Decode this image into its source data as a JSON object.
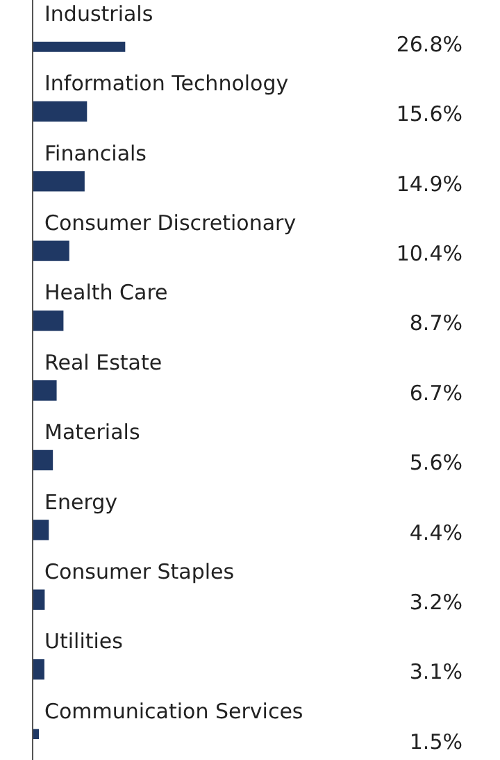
{
  "chart_data": {
    "type": "bar",
    "orientation": "horizontal",
    "categories": [
      "Industrials",
      "Information Technology",
      "Financials",
      "Consumer Discretionary",
      "Health Care",
      "Real Estate",
      "Materials",
      "Energy",
      "Consumer Staples",
      "Utilities",
      "Communication Services"
    ],
    "values": [
      26.8,
      15.6,
      14.9,
      10.4,
      8.7,
      6.7,
      5.6,
      4.4,
      3.2,
      3.1,
      1.5
    ],
    "value_labels": [
      "26.8%",
      "15.6%",
      "14.9%",
      "10.4%",
      "8.7%",
      "6.7%",
      "5.6%",
      "4.4%",
      "3.2%",
      "3.1%",
      "1.5%"
    ],
    "color": "#1f3864",
    "legend": false
  }
}
